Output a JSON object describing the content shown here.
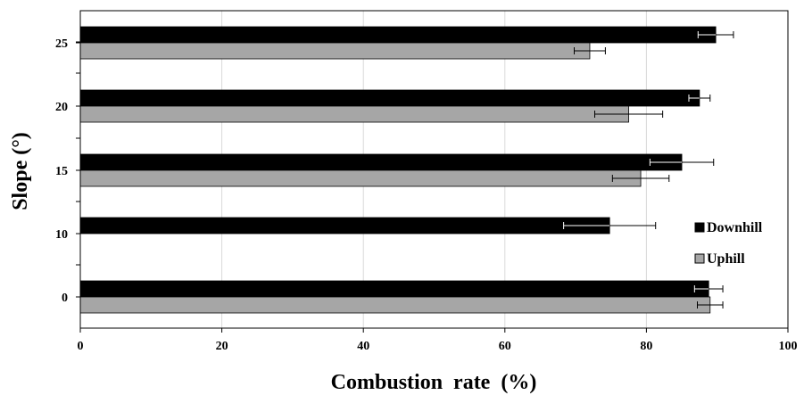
{
  "chart_data": {
    "type": "bar",
    "orientation": "horizontal",
    "categories": [
      "0",
      "10",
      "15",
      "20",
      "25"
    ],
    "series": [
      {
        "name": "Downhill",
        "color": "#000000",
        "values": [
          88.8,
          74.8,
          85.0,
          87.5,
          89.8
        ],
        "errors": [
          2.0,
          6.5,
          4.5,
          1.5,
          2.5
        ]
      },
      {
        "name": "Uphill",
        "color": "#a6a6a6",
        "values": [
          89.0,
          null,
          79.2,
          77.5,
          72.0
        ],
        "errors": [
          1.8,
          null,
          4.0,
          4.8,
          2.2
        ]
      }
    ],
    "xlabel": "Combustion rate (%)",
    "ylabel": "Slope (°)",
    "xlim": [
      0,
      100
    ],
    "xticks": [
      "0",
      "20",
      "40",
      "60",
      "80",
      "100"
    ],
    "grid": "vertical",
    "legend": "right"
  }
}
